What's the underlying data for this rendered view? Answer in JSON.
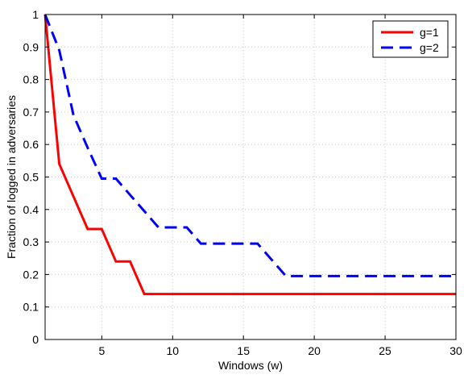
{
  "chart_data": {
    "type": "line",
    "title": "",
    "xlabel": "Windows (w)",
    "ylabel": "Fraction of logged in adversaries",
    "xlim": [
      1,
      30
    ],
    "ylim": [
      0,
      1
    ],
    "xticks": [
      5,
      10,
      15,
      20,
      25,
      30
    ],
    "yticks": [
      0,
      0.1,
      0.2,
      0.3,
      0.4,
      0.5,
      0.6,
      0.7,
      0.8,
      0.9,
      1
    ],
    "grid": true,
    "grid_style": "dotted",
    "legend_position": "top-right",
    "series": [
      {
        "name": "g=1",
        "color": "#ff0000",
        "line_style": "solid",
        "x": [
          1,
          2,
          3,
          4,
          5,
          6,
          7,
          8,
          9,
          10,
          11,
          12,
          13,
          14,
          15,
          16,
          17,
          18,
          19,
          20,
          21,
          22,
          23,
          24,
          25,
          26,
          27,
          28,
          29,
          30
        ],
        "y": [
          1,
          0.54,
          0.44,
          0.34,
          0.34,
          0.24,
          0.24,
          0.14,
          0.14,
          0.14,
          0.14,
          0.14,
          0.14,
          0.14,
          0.14,
          0.14,
          0.14,
          0.14,
          0.14,
          0.14,
          0.14,
          0.14,
          0.14,
          0.14,
          0.14,
          0.14,
          0.14,
          0.14,
          0.14,
          0.14
        ]
      },
      {
        "name": "g=2",
        "color": "#0000ff",
        "line_style": "dashed",
        "x": [
          1,
          2,
          3,
          4,
          5,
          6,
          7,
          8,
          9,
          10,
          11,
          12,
          13,
          14,
          15,
          16,
          17,
          18,
          19,
          20,
          21,
          22,
          23,
          24,
          25,
          26,
          27,
          28,
          29,
          30
        ],
        "y": [
          1,
          0.89,
          0.69,
          0.59,
          0.495,
          0.495,
          0.445,
          0.395,
          0.345,
          0.345,
          0.345,
          0.295,
          0.295,
          0.295,
          0.295,
          0.295,
          0.245,
          0.195,
          0.195,
          0.195,
          0.195,
          0.195,
          0.195,
          0.195,
          0.195,
          0.195,
          0.195,
          0.195,
          0.195,
          0.195
        ]
      }
    ]
  }
}
